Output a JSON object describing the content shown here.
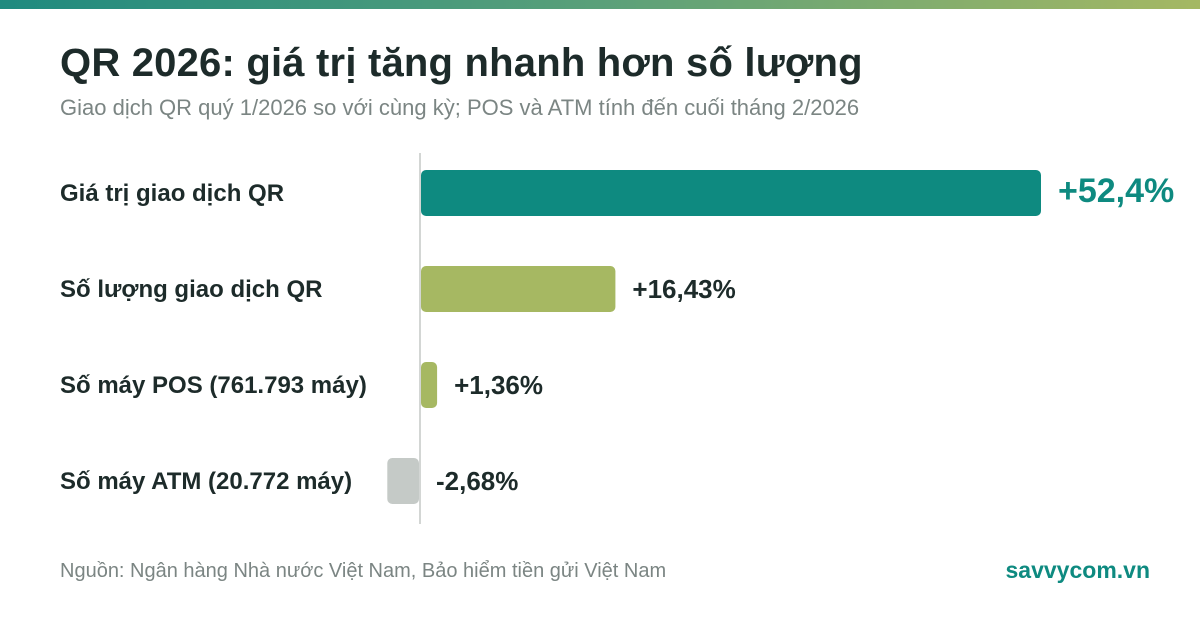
{
  "title": "QR 2026: giá trị tăng nhanh hơn số lượng",
  "subtitle": "Giao dịch QR quý 1/2026 so với cùng kỳ; POS và ATM tính đến cuối tháng 2/2026",
  "footer": {
    "source": "Nguồn: Ngân hàng Nhà nước Việt Nam, Bảo hiểm tiền gửi Việt Nam",
    "brand": "savvycom.vn"
  },
  "colors": {
    "accent": "#0e8a80",
    "light_green": "#a6b862",
    "negative": "#c5cac7",
    "text": "#1d2b2a",
    "muted": "#7b8583"
  },
  "chart_data": {
    "type": "bar",
    "orientation": "horizontal",
    "title": "QR 2026: giá trị tăng nhanh hơn số lượng",
    "subtitle": "Giao dịch QR quý 1/2026 so với cùng kỳ; POS và ATM tính đến cuối tháng 2/2026",
    "unit": "%",
    "categories": [
      "Giá trị giao dịch QR",
      "Số lượng giao dịch QR",
      "Số máy POS (761.793 máy)",
      "Số máy ATM (20.772 máy)"
    ],
    "values": [
      52.4,
      16.43,
      1.36,
      -2.68
    ],
    "value_labels": [
      "+52,4%",
      "+16,43%",
      "+1,36%",
      "-2,68%"
    ],
    "bar_colors": [
      "#0e8a80",
      "#a6b862",
      "#a6b862",
      "#c5cac7"
    ],
    "xlim": [
      -2.68,
      52.4
    ],
    "grid": false,
    "legend": "none"
  }
}
